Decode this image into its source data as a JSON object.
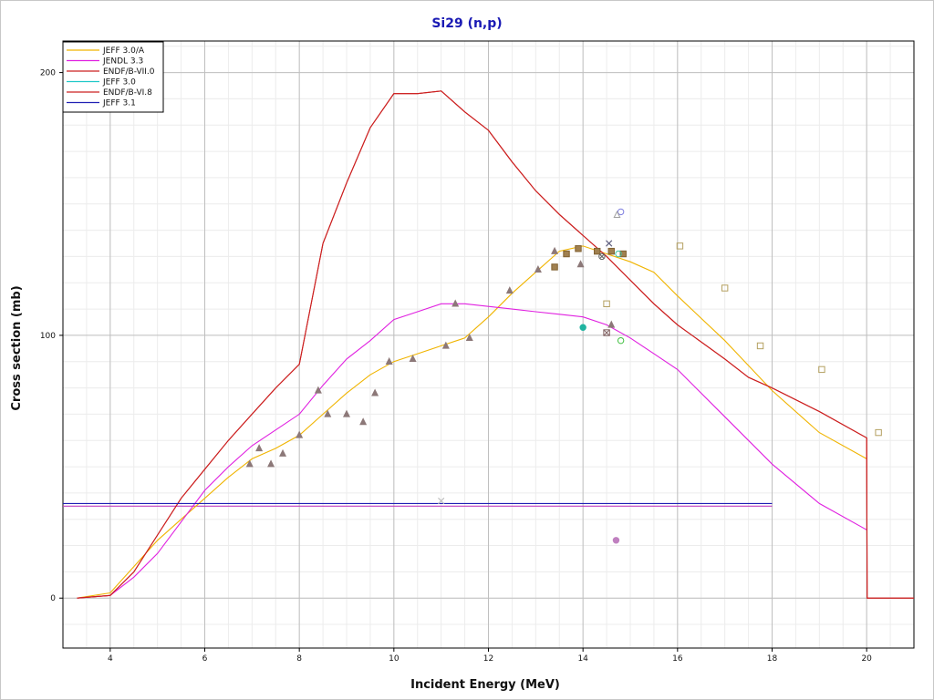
{
  "chart_data": {
    "type": "line",
    "title": "Si29 (n,p)",
    "xlabel": "Incident Energy (MeV)",
    "ylabel": "Cross section (mb)",
    "xlim": [
      3,
      21
    ],
    "ylim": [
      -19,
      212
    ],
    "x_ticks": [
      4,
      6,
      8,
      10,
      12,
      14,
      16,
      18,
      20
    ],
    "y_ticks": [
      0,
      100,
      200
    ],
    "grid": true,
    "legend_position": "top-left",
    "series": [
      {
        "name": "JEFF 3.0/A",
        "color": "#f0b400",
        "x": [
          3.3,
          4.0,
          4.5,
          5.0,
          5.5,
          6.0,
          6.5,
          7.0,
          7.5,
          8.0,
          8.5,
          9.0,
          9.5,
          10.0,
          10.5,
          11.0,
          11.5,
          12.0,
          12.5,
          13.0,
          13.5,
          14.0,
          14.5,
          15.0,
          15.5,
          16.0,
          17.0,
          18.0,
          19.0,
          20.0
        ],
        "y": [
          0,
          2,
          12,
          22,
          30,
          38,
          46,
          53,
          57,
          62,
          70,
          78,
          85,
          90,
          93,
          96,
          99,
          107,
          116,
          124,
          132,
          134,
          131,
          128,
          124,
          115,
          98,
          79,
          63,
          53
        ]
      },
      {
        "name": "JENDL 3.3",
        "color": "#e020e0",
        "x": [
          3.3,
          4.0,
          4.5,
          5.0,
          5.5,
          6.0,
          6.5,
          7.0,
          7.5,
          8.0,
          8.5,
          9.0,
          9.5,
          10.0,
          10.5,
          11.0,
          11.5,
          12.0,
          12.5,
          13.0,
          13.5,
          14.0,
          14.5,
          15.0,
          15.5,
          16.0,
          17.0,
          18.0,
          19.0,
          20.0
        ],
        "y": [
          0,
          1,
          8,
          17,
          29,
          41,
          50,
          58,
          64,
          70,
          81,
          91,
          98,
          106,
          109,
          112,
          112,
          111,
          110,
          109,
          108,
          107,
          104,
          99,
          93,
          87,
          69,
          51,
          36,
          26
        ]
      },
      {
        "name": "ENDF/B-VII.0",
        "color": "#cc2020",
        "x": [
          3.3,
          4.0,
          4.5,
          5.0,
          5.5,
          6.0,
          6.5,
          7.0,
          7.5,
          8.0,
          8.5,
          9.0,
          9.5,
          10.0,
          10.5,
          11.0,
          11.5,
          12.0,
          12.5,
          13.0,
          13.5,
          14.0,
          14.5,
          15.0,
          15.5,
          16.0,
          17.0,
          17.5,
          18.0,
          19.0,
          20.0,
          20.01,
          21.0
        ],
        "y": [
          0,
          1,
          10,
          24,
          38,
          49,
          60,
          70,
          80,
          89,
          135,
          158,
          179,
          192,
          192,
          193,
          185,
          178,
          166,
          155,
          146,
          138,
          130,
          121,
          112,
          104,
          91,
          84,
          80,
          71,
          61,
          0,
          0
        ]
      },
      {
        "name": "JEFF 3.0",
        "color": "#20c8c8",
        "x": [],
        "y": []
      },
      {
        "name": "ENDF/B-VI.8",
        "color": "#cc2020",
        "x": [
          3.3,
          4.0,
          4.5,
          5.0,
          5.5,
          6.0,
          6.5,
          7.0,
          7.5,
          8.0,
          8.5,
          9.0,
          9.5,
          10.0,
          10.5,
          11.0,
          11.5,
          12.0,
          12.5,
          13.0,
          13.5,
          14.0,
          14.5,
          15.0,
          15.5,
          16.0,
          17.0,
          17.5,
          18.0,
          19.0,
          20.0,
          20.01,
          21.0
        ],
        "y": [
          0,
          1,
          10,
          24,
          38,
          49,
          60,
          70,
          80,
          89,
          135,
          158,
          179,
          192,
          192,
          193,
          185,
          178,
          166,
          155,
          146,
          138,
          130,
          121,
          112,
          104,
          91,
          84,
          80,
          71,
          61,
          0,
          0
        ]
      },
      {
        "name": "JEFF 3.1",
        "color": "#2020b4",
        "x": [
          3,
          18
        ],
        "y": [
          36,
          36
        ]
      }
    ],
    "extra_lines": [
      {
        "color": "#c040c0",
        "x": [
          3,
          18
        ],
        "y": [
          35,
          35
        ]
      }
    ],
    "experimental_points": [
      {
        "marker": "triangle",
        "color": "#8c7878",
        "points": [
          [
            6.95,
            51
          ],
          [
            7.15,
            57
          ],
          [
            7.4,
            51
          ],
          [
            7.65,
            55
          ],
          [
            8.0,
            62
          ],
          [
            8.4,
            79
          ],
          [
            8.6,
            70
          ],
          [
            9.0,
            70
          ],
          [
            9.35,
            67
          ],
          [
            9.6,
            78
          ],
          [
            9.9,
            90
          ],
          [
            10.4,
            91
          ],
          [
            11.1,
            96
          ],
          [
            11.3,
            112
          ],
          [
            11.6,
            99
          ],
          [
            12.45,
            117
          ],
          [
            13.05,
            125
          ],
          [
            13.4,
            132
          ],
          [
            13.95,
            127
          ],
          [
            14.6,
            104
          ]
        ]
      },
      {
        "marker": "square-filled",
        "color": "#a08050",
        "points": [
          [
            13.4,
            126
          ],
          [
            13.65,
            131
          ],
          [
            13.9,
            133
          ],
          [
            14.3,
            132
          ],
          [
            14.6,
            132
          ],
          [
            14.85,
            131
          ]
        ]
      },
      {
        "marker": "square-open",
        "color": "#b4a060",
        "points": [
          [
            16.05,
            134
          ],
          [
            17.0,
            118
          ],
          [
            17.75,
            96
          ],
          [
            19.05,
            87
          ],
          [
            20.25,
            63
          ],
          [
            14.5,
            112
          ]
        ]
      },
      {
        "marker": "circle-filled",
        "color": "#20b4a0",
        "points": [
          [
            14.0,
            103
          ]
        ]
      },
      {
        "marker": "circle-open",
        "color": "#40c040",
        "points": [
          [
            14.8,
            98
          ]
        ]
      },
      {
        "marker": "square-x",
        "color": "#806060",
        "points": [
          [
            14.5,
            101
          ]
        ]
      },
      {
        "marker": "circle-filled",
        "color": "#c080c0",
        "points": [
          [
            14.7,
            22
          ]
        ]
      },
      {
        "marker": "circle-open",
        "color": "#8080e0",
        "points": [
          [
            14.8,
            147
          ]
        ]
      },
      {
        "marker": "triangle-open",
        "color": "#a0a0a0",
        "points": [
          [
            14.72,
            146
          ]
        ]
      },
      {
        "marker": "x",
        "color": "#606080",
        "points": [
          [
            14.55,
            135
          ]
        ]
      },
      {
        "marker": "circle-x",
        "color": "#606060",
        "points": [
          [
            14.4,
            130
          ]
        ]
      },
      {
        "marker": "circle-open",
        "color": "#40c0a0",
        "points": [
          [
            14.75,
            131
          ]
        ]
      },
      {
        "marker": "x",
        "color": "#c0c0c0",
        "points": [
          [
            11.0,
            37
          ]
        ]
      }
    ],
    "legend_order": [
      "JEFF 3.0/A",
      "JENDL 3.3",
      "ENDF/B-VII.0",
      "JEFF 3.0",
      "ENDF/B-VI.8",
      "JEFF 3.1"
    ]
  }
}
